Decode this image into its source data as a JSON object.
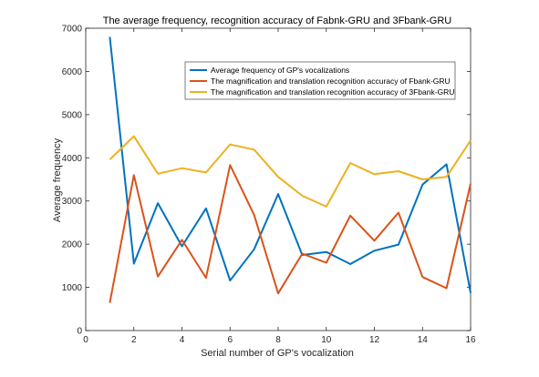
{
  "chart_data": {
    "type": "line",
    "title": "The average frequency, recognition accuracy of Fabnk-GRU and 3Fbank-GRU",
    "xlabel": "Serial number of GP's vocalization",
    "ylabel": "Average frequency",
    "xlim": [
      0,
      16
    ],
    "ylim": [
      0,
      7000
    ],
    "xticks": [
      "0",
      "2",
      "4",
      "6",
      "8",
      "10",
      "12",
      "14",
      "16"
    ],
    "yticks": [
      "0",
      "1000",
      "2000",
      "3000",
      "4000",
      "5000",
      "6000",
      "7000"
    ],
    "grid": false,
    "legend_position": "top-right",
    "x": [
      1,
      2,
      3,
      4,
      5,
      6,
      7,
      8,
      9,
      10,
      11,
      12,
      13,
      14,
      15,
      16
    ],
    "series": [
      {
        "name": "Average frequency of GP's vocalizations",
        "color": "#0072BD",
        "values": [
          6800,
          1550,
          2950,
          1950,
          2830,
          1160,
          1880,
          3160,
          1750,
          1820,
          1540,
          1850,
          1990,
          3380,
          3850,
          870
        ]
      },
      {
        "name": "The magnification and translation recognition accuracy of Fbank-GRU",
        "color": "#D95319",
        "values": [
          640,
          3600,
          1250,
          2100,
          1220,
          3830,
          2680,
          860,
          1780,
          1570,
          2660,
          2080,
          2730,
          1240,
          980,
          3400
        ]
      },
      {
        "name": "The magnification and translation recognition accuracy of 3Fbank-GRU",
        "color": "#EDB120",
        "values": [
          3960,
          4500,
          3630,
          3760,
          3660,
          4310,
          4190,
          3560,
          3120,
          2870,
          3880,
          3620,
          3690,
          3500,
          3560,
          4400
        ]
      }
    ]
  }
}
